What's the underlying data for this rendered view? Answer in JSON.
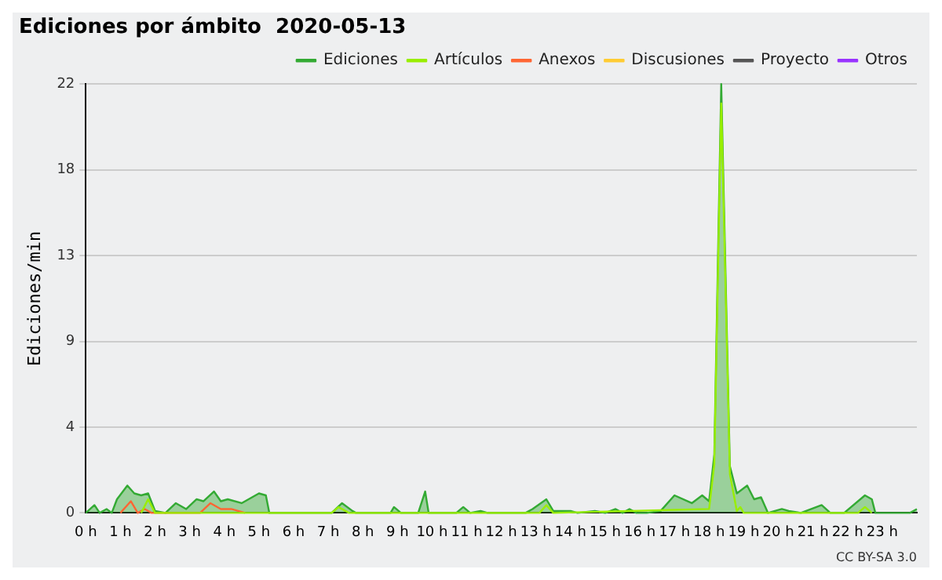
{
  "chart_data": {
    "type": "area",
    "title": "Ediciones por ámbito  2020-05-13",
    "ylabel": "Ediciones/min",
    "xlim": [
      0,
      24
    ],
    "xticks": [
      {
        "value": 0,
        "label": "0 h"
      },
      {
        "value": 1,
        "label": "1 h"
      },
      {
        "value": 2,
        "label": "2 h"
      },
      {
        "value": 3,
        "label": "3 h"
      },
      {
        "value": 4,
        "label": "4 h"
      },
      {
        "value": 5,
        "label": "5 h"
      },
      {
        "value": 6,
        "label": "6 h"
      },
      {
        "value": 7,
        "label": "7 h"
      },
      {
        "value": 8,
        "label": "8 h"
      },
      {
        "value": 9,
        "label": "9 h"
      },
      {
        "value": 10,
        "label": "10 h"
      },
      {
        "value": 11,
        "label": "11 h"
      },
      {
        "value": 12,
        "label": "12 h"
      },
      {
        "value": 13,
        "label": "13 h"
      },
      {
        "value": 14,
        "label": "14 h"
      },
      {
        "value": 15,
        "label": "15 h"
      },
      {
        "value": 16,
        "label": "16 h"
      },
      {
        "value": 17,
        "label": "17 h"
      },
      {
        "value": 18,
        "label": "18 h"
      },
      {
        "value": 19,
        "label": "19 h"
      },
      {
        "value": 20,
        "label": "20 h"
      },
      {
        "value": 21,
        "label": "21 h"
      },
      {
        "value": 22,
        "label": "22 h"
      },
      {
        "value": 23,
        "label": "23 h"
      }
    ],
    "ylim": [
      0,
      22
    ],
    "yticks": [
      0,
      {
        "value": 4.4,
        "label": "4"
      },
      {
        "value": 8.8,
        "label": "9"
      },
      {
        "value": 13.2,
        "label": "13"
      },
      {
        "value": 17.6,
        "label": "18"
      },
      22
    ],
    "grid": "y",
    "legend": "top right",
    "marker": "none",
    "line_style": "solid",
    "annotations": [
      "CC BY-SA 3.0"
    ],
    "series": [
      {
        "name": "Ediciones",
        "color": "#33aa33",
        "x": [
          0,
          0.25,
          0.4,
          0.6,
          0.75,
          0.9,
          1.2,
          1.4,
          1.6,
          1.8,
          2.0,
          2.3,
          2.6,
          2.9,
          3.2,
          3.4,
          3.7,
          3.9,
          4.1,
          4.5,
          5.0,
          5.2,
          5.3,
          7.1,
          7.4,
          7.7,
          7.8,
          8.8,
          8.9,
          9.1,
          9.6,
          9.8,
          9.9,
          10.7,
          10.9,
          11.1,
          11.4,
          11.6,
          12.7,
          12.9,
          13.3,
          13.5,
          14.0,
          14.2,
          14.7,
          15.0,
          15.3,
          15.5,
          15.7,
          15.9,
          16.2,
          16.6,
          17.0,
          17.5,
          17.8,
          18.0,
          18.15,
          18.35,
          18.6,
          18.8,
          19.1,
          19.3,
          19.5,
          19.7,
          20.1,
          20.3,
          20.65,
          21.25,
          21.5,
          21.9,
          22.5,
          22.7,
          22.8,
          23.8,
          24.0
        ],
        "values": [
          0,
          0.4,
          0,
          0.2,
          0,
          0.7,
          1.4,
          1,
          0.9,
          1,
          0.1,
          0,
          0.5,
          0.2,
          0.7,
          0.6,
          1.1,
          0.6,
          0.7,
          0.5,
          1,
          0.9,
          0,
          0,
          0.5,
          0.1,
          0,
          0,
          0.3,
          0,
          0,
          1.1,
          0,
          0,
          0.3,
          0,
          0.1,
          0,
          0,
          0.2,
          0.7,
          0.1,
          0.1,
          0,
          0.1,
          0,
          0.2,
          0,
          0.2,
          0,
          0,
          0.1,
          0.9,
          0.5,
          0.9,
          0.6,
          3,
          22,
          2.4,
          1,
          1.4,
          0.7,
          0.8,
          0,
          0.2,
          0.1,
          0,
          0.4,
          0,
          0,
          0.9,
          0.7,
          0,
          0,
          0.2
        ]
      },
      {
        "name": "Artículos",
        "color": "#99ee00",
        "type": "line",
        "x": [
          1.6,
          1.8,
          2.0,
          7.1,
          7.3,
          7.6,
          13.1,
          13.3,
          13.5,
          18.0,
          18.15,
          18.35,
          18.6,
          18.8,
          18.9,
          19.0,
          22.3,
          22.5,
          22.7
        ],
        "values": [
          0,
          0.7,
          0,
          0,
          0.3,
          0,
          0,
          0.4,
          0,
          0.2,
          2.5,
          21,
          2,
          0.1,
          0.3,
          0,
          0,
          0.3,
          0
        ]
      },
      {
        "name": "Anexos",
        "color": "#ff6633",
        "type": "line",
        "x": [
          1.0,
          1.3,
          1.5,
          1.7,
          1.9,
          3.3,
          3.6,
          3.9,
          4.2,
          4.6
        ],
        "values": [
          0,
          0.6,
          0,
          0.2,
          0,
          0,
          0.5,
          0.2,
          0.2,
          0
        ]
      },
      {
        "name": "Discusiones",
        "color": "#ffcc33",
        "type": "line"
      },
      {
        "name": "Proyecto",
        "color": "#555555",
        "type": "line"
      },
      {
        "name": "Otros",
        "color": "#9933ff",
        "type": "line"
      }
    ]
  }
}
